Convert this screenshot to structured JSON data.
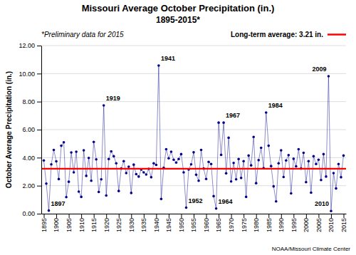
{
  "chart_data": {
    "type": "line",
    "title": "Missouri Average October Precipitation (in.)",
    "subtitle": "1895-2015*",
    "y_label": "October Average Precipitation (in.)",
    "note": "*Preliminary data for 2015",
    "credit": "NOAA/Missouri Climate Center",
    "color": "#00008B",
    "marker": "circle",
    "grid": true,
    "xlim": [
      1894,
      2016
    ],
    "ylim": [
      0.0,
      12.0
    ],
    "xticks": [
      1895,
      1900,
      1905,
      1910,
      1915,
      1920,
      1925,
      1930,
      1935,
      1940,
      1945,
      1950,
      1955,
      1960,
      1965,
      1970,
      1975,
      1980,
      1985,
      1990,
      1995,
      2000,
      2005,
      2010,
      2015
    ],
    "yticks": [
      {
        "value": 0,
        "label": "0.00"
      },
      {
        "value": 2,
        "label": "2.00"
      },
      {
        "value": 4,
        "label": "4.00"
      },
      {
        "value": 6,
        "label": "6.00"
      },
      {
        "value": 8,
        "label": "8.00"
      },
      {
        "value": 10,
        "label": "10.00"
      },
      {
        "value": 12,
        "label": "12.00"
      }
    ],
    "average_line": {
      "value": 3.21,
      "label": "Long-term average: 3.21 in.",
      "color": "#FF0000"
    },
    "annotations": [
      {
        "text": "1897",
        "x": 1897,
        "y": 0.22
      },
      {
        "text": "1919",
        "x": 1919,
        "y": 7.73
      },
      {
        "text": "1941",
        "x": 1941,
        "y": 10.58
      },
      {
        "text": "1952",
        "x": 1952,
        "y": 0.43
      },
      {
        "text": "1964",
        "x": 1964,
        "y": 0.37
      },
      {
        "text": "1967",
        "x": 1967,
        "y": 6.5
      },
      {
        "text": "1984",
        "x": 1984,
        "y": 7.22
      },
      {
        "text": "2009",
        "x": 2009,
        "y": 9.81
      },
      {
        "text": "2010",
        "x": 2010,
        "y": 0.19
      }
    ],
    "x": [
      1895,
      1896,
      1897,
      1898,
      1899,
      1900,
      1901,
      1902,
      1903,
      1904,
      1905,
      1906,
      1907,
      1908,
      1909,
      1910,
      1911,
      1912,
      1913,
      1914,
      1915,
      1916,
      1917,
      1918,
      1919,
      1920,
      1921,
      1922,
      1923,
      1924,
      1925,
      1926,
      1927,
      1928,
      1929,
      1930,
      1931,
      1932,
      1933,
      1934,
      1935,
      1936,
      1937,
      1938,
      1939,
      1940,
      1941,
      1942,
      1943,
      1944,
      1945,
      1946,
      1947,
      1948,
      1949,
      1950,
      1951,
      1952,
      1953,
      1954,
      1955,
      1956,
      1957,
      1958,
      1959,
      1960,
      1961,
      1962,
      1963,
      1964,
      1965,
      1966,
      1967,
      1968,
      1969,
      1970,
      1971,
      1972,
      1973,
      1974,
      1975,
      1976,
      1977,
      1978,
      1979,
      1980,
      1981,
      1982,
      1983,
      1984,
      1985,
      1986,
      1987,
      1988,
      1989,
      1990,
      1991,
      1992,
      1993,
      1994,
      1995,
      1996,
      1997,
      1998,
      1999,
      2000,
      2001,
      2002,
      2003,
      2004,
      2005,
      2006,
      2007,
      2008,
      2009,
      2010,
      2011,
      2012,
      2013,
      2014,
      2015
    ],
    "values": [
      3.8,
      2.15,
      0.22,
      3.52,
      4.55,
      3.74,
      2.47,
      4.85,
      5.1,
      1.18,
      2.28,
      4.37,
      2.95,
      4.42,
      1.58,
      1.2,
      4.52,
      2.7,
      3.98,
      2.35,
      5.12,
      3.88,
      1.55,
      2.45,
      7.73,
      1.3,
      3.9,
      4.45,
      4.1,
      3.6,
      1.62,
      3.22,
      3.75,
      2.9,
      3.35,
      1.48,
      3.5,
      2.82,
      2.65,
      3.15,
      2.95,
      2.8,
      3.2,
      2.6,
      3.6,
      3.48,
      10.58,
      1.05,
      3.28,
      4.6,
      3.95,
      4.42,
      3.85,
      3.65,
      3.9,
      4.25,
      2.95,
      0.43,
      3.15,
      3.52,
      4.38,
      2.78,
      2.35,
      4.55,
      3.22,
      2.48,
      3.7,
      3.55,
      1.25,
      0.37,
      6.5,
      4.2,
      6.5,
      2.88,
      5.42,
      2.3,
      3.62,
      2.45,
      3.9,
      2.55,
      3.75,
      1.2,
      4.15,
      3.45,
      5.48,
      2.18,
      3.82,
      4.7,
      3.25,
      7.22,
      4.85,
      3.4,
      1.95,
      0.88,
      3.6,
      4.52,
      2.62,
      3.8,
      4.18,
      1.45,
      3.92,
      3.38,
      4.6,
      3.22,
      4.35,
      2.25,
      3.75,
      1.5,
      4.1,
      3.55,
      3.85,
      2.4,
      4.25,
      2.65,
      9.81,
      0.19,
      2.9,
      1.8,
      3.55,
      2.6,
      4.15
    ]
  }
}
